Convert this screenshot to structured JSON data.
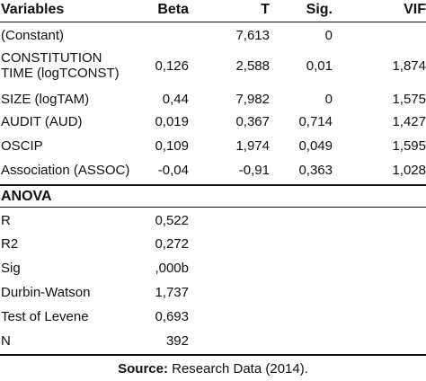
{
  "table": {
    "headers": {
      "variables": "Variables",
      "beta": "Beta",
      "t": "T",
      "sig": "Sig.",
      "vif": "VIF"
    },
    "rows": [
      {
        "variable": "(Constant)",
        "beta": "",
        "t": "7,613",
        "sig": "0",
        "vif": ""
      },
      {
        "variable_line1": "CONSTITUTION",
        "variable_line2": "TIME (logTCONST)",
        "beta": "0,126",
        "t": "2,588",
        "sig": "0,01",
        "vif": "1,874"
      },
      {
        "variable": "SIZE (logTAM)",
        "beta": "0,44",
        "t": "7,982",
        "sig": "0",
        "vif": "1,575"
      },
      {
        "variable": "AUDIT (AUD)",
        "beta": "0,019",
        "t": "0,367",
        "sig": "0,714",
        "vif": "1,427"
      },
      {
        "variable": "OSCIP",
        "beta": "0,109",
        "t": "1,974",
        "sig": "0,049",
        "vif": "1,595"
      },
      {
        "variable": "Association (ASSOC)",
        "beta": "-0,04",
        "t": "-0,91",
        "sig": "0,363",
        "vif": "1,028"
      }
    ],
    "anova_label": "ANOVA",
    "anova_rows": [
      {
        "label": "R",
        "value": "0,522"
      },
      {
        "label": "R2",
        "value": "0,272"
      },
      {
        "label": "Sig",
        "value": ",000b"
      },
      {
        "label": "Durbin-Watson",
        "value": "1,737"
      },
      {
        "label": "Test of Levene",
        "value": "0,693"
      },
      {
        "label": "N",
        "value": "392"
      }
    ]
  },
  "source": {
    "label": "Source:",
    "text": " Research Data (2014)."
  }
}
